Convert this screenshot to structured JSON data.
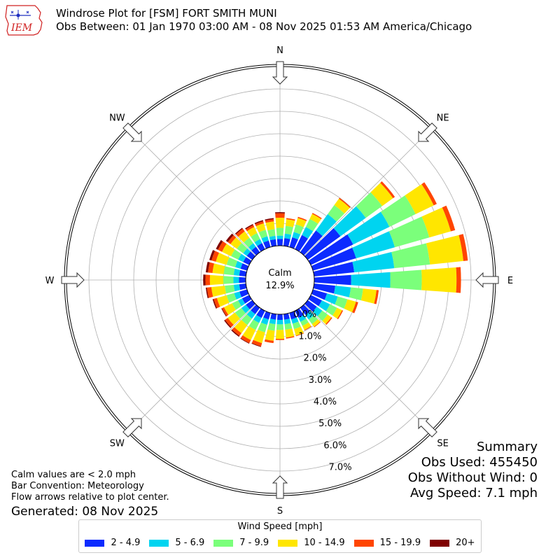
{
  "header": {
    "logo_text": "IEM",
    "title": "Windrose Plot for [FSM] FORT SMITH MUNI",
    "subtitle": "Obs Between: 01 Jan 1970 03:00 AM - 08 Nov 2025 01:53 AM America/Chicago"
  },
  "summary": {
    "heading": "Summary",
    "obs_used": "Obs Used: 455450",
    "obs_without_wind": "Obs Without Wind: 0",
    "avg_speed": "Avg Speed: 7.1 mph"
  },
  "notes": {
    "calm_note": "Calm values are < 2.0 mph",
    "bar_convention": "Bar Convention: Meteorology",
    "flow_note": "Flow arrows relative to plot center.",
    "generated": "Generated: 08 Nov 2025"
  },
  "legend": {
    "title": "Wind Speed [mph]"
  },
  "chart_data": {
    "type": "windrose",
    "calm_label": "Calm",
    "calm_value": "12.9%",
    "direction_labels": [
      {
        "label": "N",
        "angle": 0
      },
      {
        "label": "NE",
        "angle": 45
      },
      {
        "label": "E",
        "angle": 90
      },
      {
        "label": "SE",
        "angle": 135
      },
      {
        "label": "S",
        "angle": 180
      },
      {
        "label": "SW",
        "angle": 225
      },
      {
        "label": "W",
        "angle": 270
      },
      {
        "label": "NW",
        "angle": 315
      }
    ],
    "radial_ticks": [
      "0.0%",
      "1.0%",
      "2.0%",
      "3.0%",
      "4.0%",
      "5.0%",
      "6.0%",
      "7.0%"
    ],
    "radial_max": 8.0,
    "calm_radius": 1.4,
    "sectors": 36,
    "bins": [
      {
        "label": "2 - 4.9",
        "color": "#0c2bff"
      },
      {
        "label": "5 - 6.9",
        "color": "#00d4f0"
      },
      {
        "label": "7 - 9.9",
        "color": "#7bff7b"
      },
      {
        "label": "10 - 14.9",
        "color": "#ffe600"
      },
      {
        "label": "15 - 19.9",
        "color": "#ff4500"
      },
      {
        "label": "20+",
        "color": "#7f0000"
      }
    ],
    "directions": [
      0,
      10,
      20,
      30,
      40,
      50,
      60,
      70,
      80,
      90,
      100,
      110,
      120,
      130,
      140,
      150,
      160,
      170,
      180,
      190,
      200,
      210,
      220,
      230,
      240,
      250,
      260,
      270,
      280,
      290,
      300,
      310,
      320,
      330,
      340,
      350
    ],
    "values": [
      [
        0.3,
        0.15,
        0.35,
        0.45,
        0.2,
        0.05
      ],
      [
        0.35,
        0.2,
        0.35,
        0.3,
        0.05,
        0.0
      ],
      [
        0.45,
        0.25,
        0.35,
        0.3,
        0.05,
        0.0
      ],
      [
        0.7,
        0.4,
        0.4,
        0.25,
        0.05,
        0.0
      ],
      [
        1.2,
        0.9,
        0.5,
        0.35,
        0.05,
        0.0
      ],
      [
        1.8,
        1.4,
        0.9,
        0.6,
        0.1,
        0.0
      ],
      [
        2.1,
        1.8,
        1.3,
        0.9,
        0.15,
        0.0
      ],
      [
        2.0,
        1.8,
        1.6,
        1.0,
        0.2,
        0.0
      ],
      [
        1.8,
        1.8,
        1.6,
        1.5,
        0.2,
        0.0
      ],
      [
        1.65,
        1.75,
        1.4,
        1.55,
        0.2,
        0.0
      ],
      [
        0.95,
        0.7,
        0.55,
        0.6,
        0.1,
        0.0
      ],
      [
        0.65,
        0.5,
        0.45,
        0.4,
        0.1,
        0.0
      ],
      [
        0.55,
        0.4,
        0.35,
        0.25,
        0.05,
        0.0
      ],
      [
        0.5,
        0.3,
        0.3,
        0.2,
        0.05,
        0.0
      ],
      [
        0.4,
        0.25,
        0.25,
        0.15,
        0.03,
        0.0
      ],
      [
        0.35,
        0.2,
        0.2,
        0.2,
        0.03,
        0.0
      ],
      [
        0.3,
        0.2,
        0.25,
        0.3,
        0.03,
        0.0
      ],
      [
        0.25,
        0.2,
        0.25,
        0.35,
        0.05,
        0.0
      ],
      [
        0.25,
        0.2,
        0.25,
        0.4,
        0.05,
        0.0
      ],
      [
        0.25,
        0.2,
        0.3,
        0.45,
        0.1,
        0.0
      ],
      [
        0.3,
        0.25,
        0.35,
        0.5,
        0.15,
        0.03
      ],
      [
        0.35,
        0.25,
        0.35,
        0.5,
        0.15,
        0.03
      ],
      [
        0.35,
        0.25,
        0.35,
        0.45,
        0.15,
        0.05
      ],
      [
        0.35,
        0.25,
        0.35,
        0.4,
        0.15,
        0.05
      ],
      [
        0.35,
        0.2,
        0.3,
        0.4,
        0.1,
        0.03
      ],
      [
        0.35,
        0.25,
        0.35,
        0.45,
        0.15,
        0.05
      ],
      [
        0.3,
        0.25,
        0.4,
        0.6,
        0.2,
        0.05
      ],
      [
        0.3,
        0.25,
        0.45,
        0.6,
        0.2,
        0.1
      ],
      [
        0.3,
        0.25,
        0.45,
        0.5,
        0.2,
        0.1
      ],
      [
        0.3,
        0.25,
        0.4,
        0.5,
        0.2,
        0.1
      ],
      [
        0.3,
        0.25,
        0.35,
        0.45,
        0.2,
        0.1
      ],
      [
        0.3,
        0.2,
        0.35,
        0.35,
        0.15,
        0.1
      ],
      [
        0.3,
        0.2,
        0.3,
        0.35,
        0.15,
        0.05
      ],
      [
        0.3,
        0.2,
        0.3,
        0.3,
        0.1,
        0.05
      ],
      [
        0.3,
        0.2,
        0.3,
        0.3,
        0.1,
        0.05
      ],
      [
        0.3,
        0.15,
        0.3,
        0.35,
        0.1,
        0.05
      ]
    ]
  }
}
